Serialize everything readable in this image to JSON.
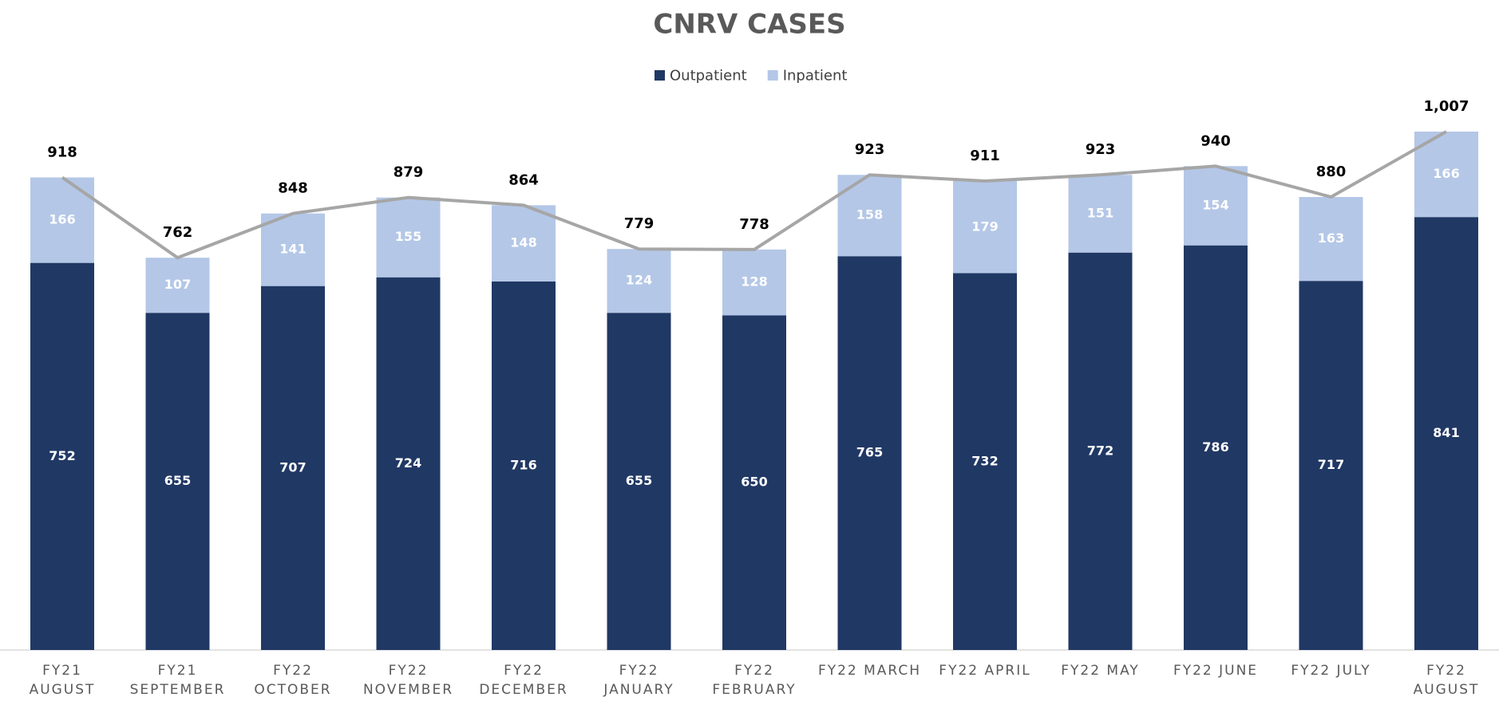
{
  "chart_data": {
    "type": "stacked_bar_line",
    "title": "CNRV CASES",
    "categories": [
      [
        "FY21",
        "AUGUST"
      ],
      [
        "FY21",
        "SEPTEMBER"
      ],
      [
        "FY22",
        "OCTOBER"
      ],
      [
        "FY22",
        "NOVEMBER"
      ],
      [
        "FY22",
        "DECEMBER"
      ],
      [
        "FY22",
        "JANUARY"
      ],
      [
        "FY22",
        "FEBRUARY"
      ],
      [
        "FY22 MARCH"
      ],
      [
        "FY22 APRIL"
      ],
      [
        "FY22 MAY"
      ],
      [
        "FY22 JUNE"
      ],
      [
        "FY22 JULY"
      ],
      [
        "FY22",
        "AUGUST"
      ]
    ],
    "series": [
      {
        "name": "Outpatient",
        "color": "#203864",
        "values": [
          752,
          655,
          707,
          724,
          716,
          655,
          650,
          765,
          732,
          772,
          786,
          717,
          841
        ]
      },
      {
        "name": "Inpatient",
        "color": "#b4c7e7",
        "values": [
          166,
          107,
          141,
          155,
          148,
          124,
          128,
          158,
          179,
          151,
          154,
          163,
          166
        ]
      },
      {
        "type": "line",
        "color": "#a6a6a6",
        "values": [
          918,
          762,
          848,
          879,
          864,
          779,
          778,
          923,
          911,
          923,
          940,
          880,
          1007
        ],
        "value_labels": [
          "918",
          "762",
          "848",
          "879",
          "864",
          "779",
          "778",
          "923",
          "911",
          "923",
          "940",
          "880",
          "1,007"
        ]
      }
    ],
    "ylim": [
      0,
      1100
    ],
    "legend": "top"
  }
}
